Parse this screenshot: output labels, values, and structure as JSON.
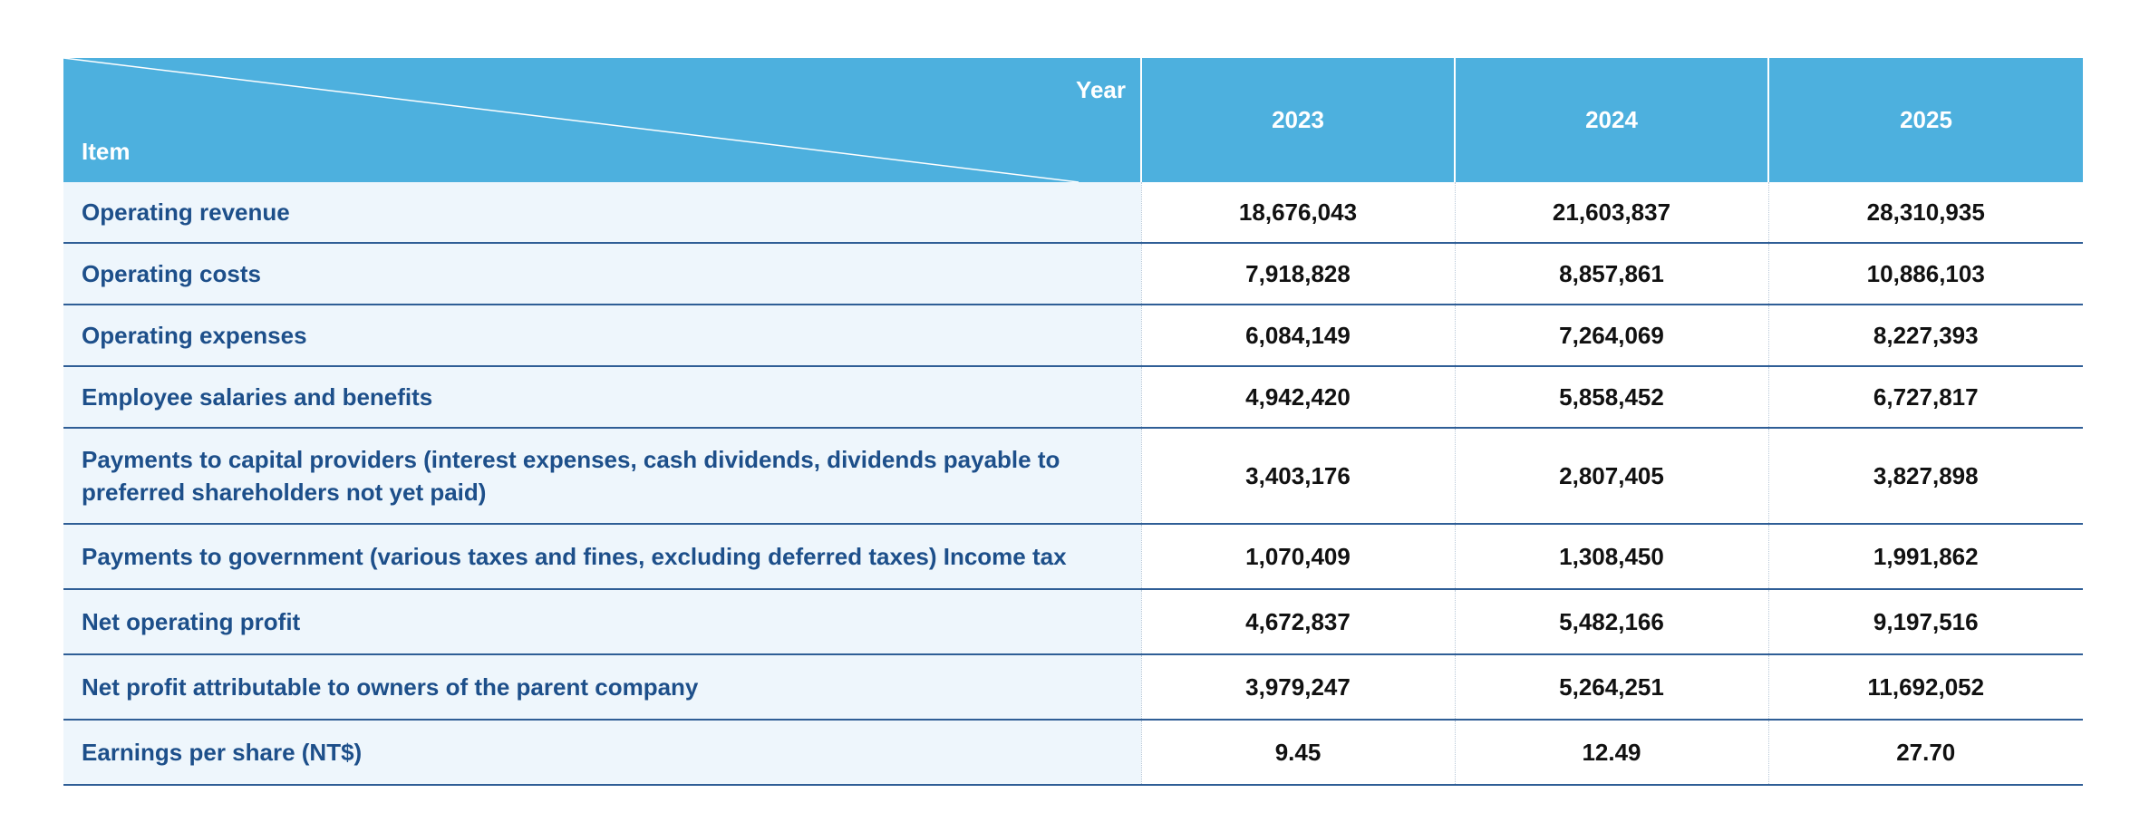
{
  "header": {
    "corner_top": "Year",
    "corner_bottom": "Item",
    "years": [
      "2023",
      "2024",
      "2025"
    ]
  },
  "rows": [
    {
      "item": "Operating revenue",
      "values": [
        "18,676,043",
        "21,603,837",
        "28,310,935"
      ]
    },
    {
      "item": "Operating costs",
      "values": [
        "7,918,828",
        "8,857,861",
        "10,886,103"
      ]
    },
    {
      "item": "Operating expenses",
      "values": [
        "6,084,149",
        "7,264,069",
        "8,227,393"
      ]
    },
    {
      "item": "Employee salaries and benefits",
      "values": [
        "4,942,420",
        "5,858,452",
        "6,727,817"
      ]
    },
    {
      "item": "Payments to capital providers (interest expenses, cash dividends, dividends payable to preferred shareholders not yet paid)",
      "values": [
        "3,403,176",
        "2,807,405",
        "3,827,898"
      ]
    },
    {
      "item": "Payments to government (various taxes and fines, excluding deferred taxes) Income tax",
      "values": [
        "1,070,409",
        "1,308,450",
        "1,991,862"
      ]
    },
    {
      "item": "Net operating profit",
      "values": [
        "4,672,837",
        "5,482,166",
        "9,197,516"
      ]
    },
    {
      "item": "Net profit attributable to owners of the parent company",
      "values": [
        "3,979,247",
        "5,264,251",
        "11,692,052"
      ]
    },
    {
      "item": "Earnings per share (NT$)",
      "values": [
        "9.45",
        "12.49",
        "27.70"
      ]
    }
  ],
  "colors": {
    "header_bg": "#4db0de",
    "item_bg": "#eef6fc",
    "item_text": "#1d4f8a",
    "row_border": "#2f5e96"
  }
}
